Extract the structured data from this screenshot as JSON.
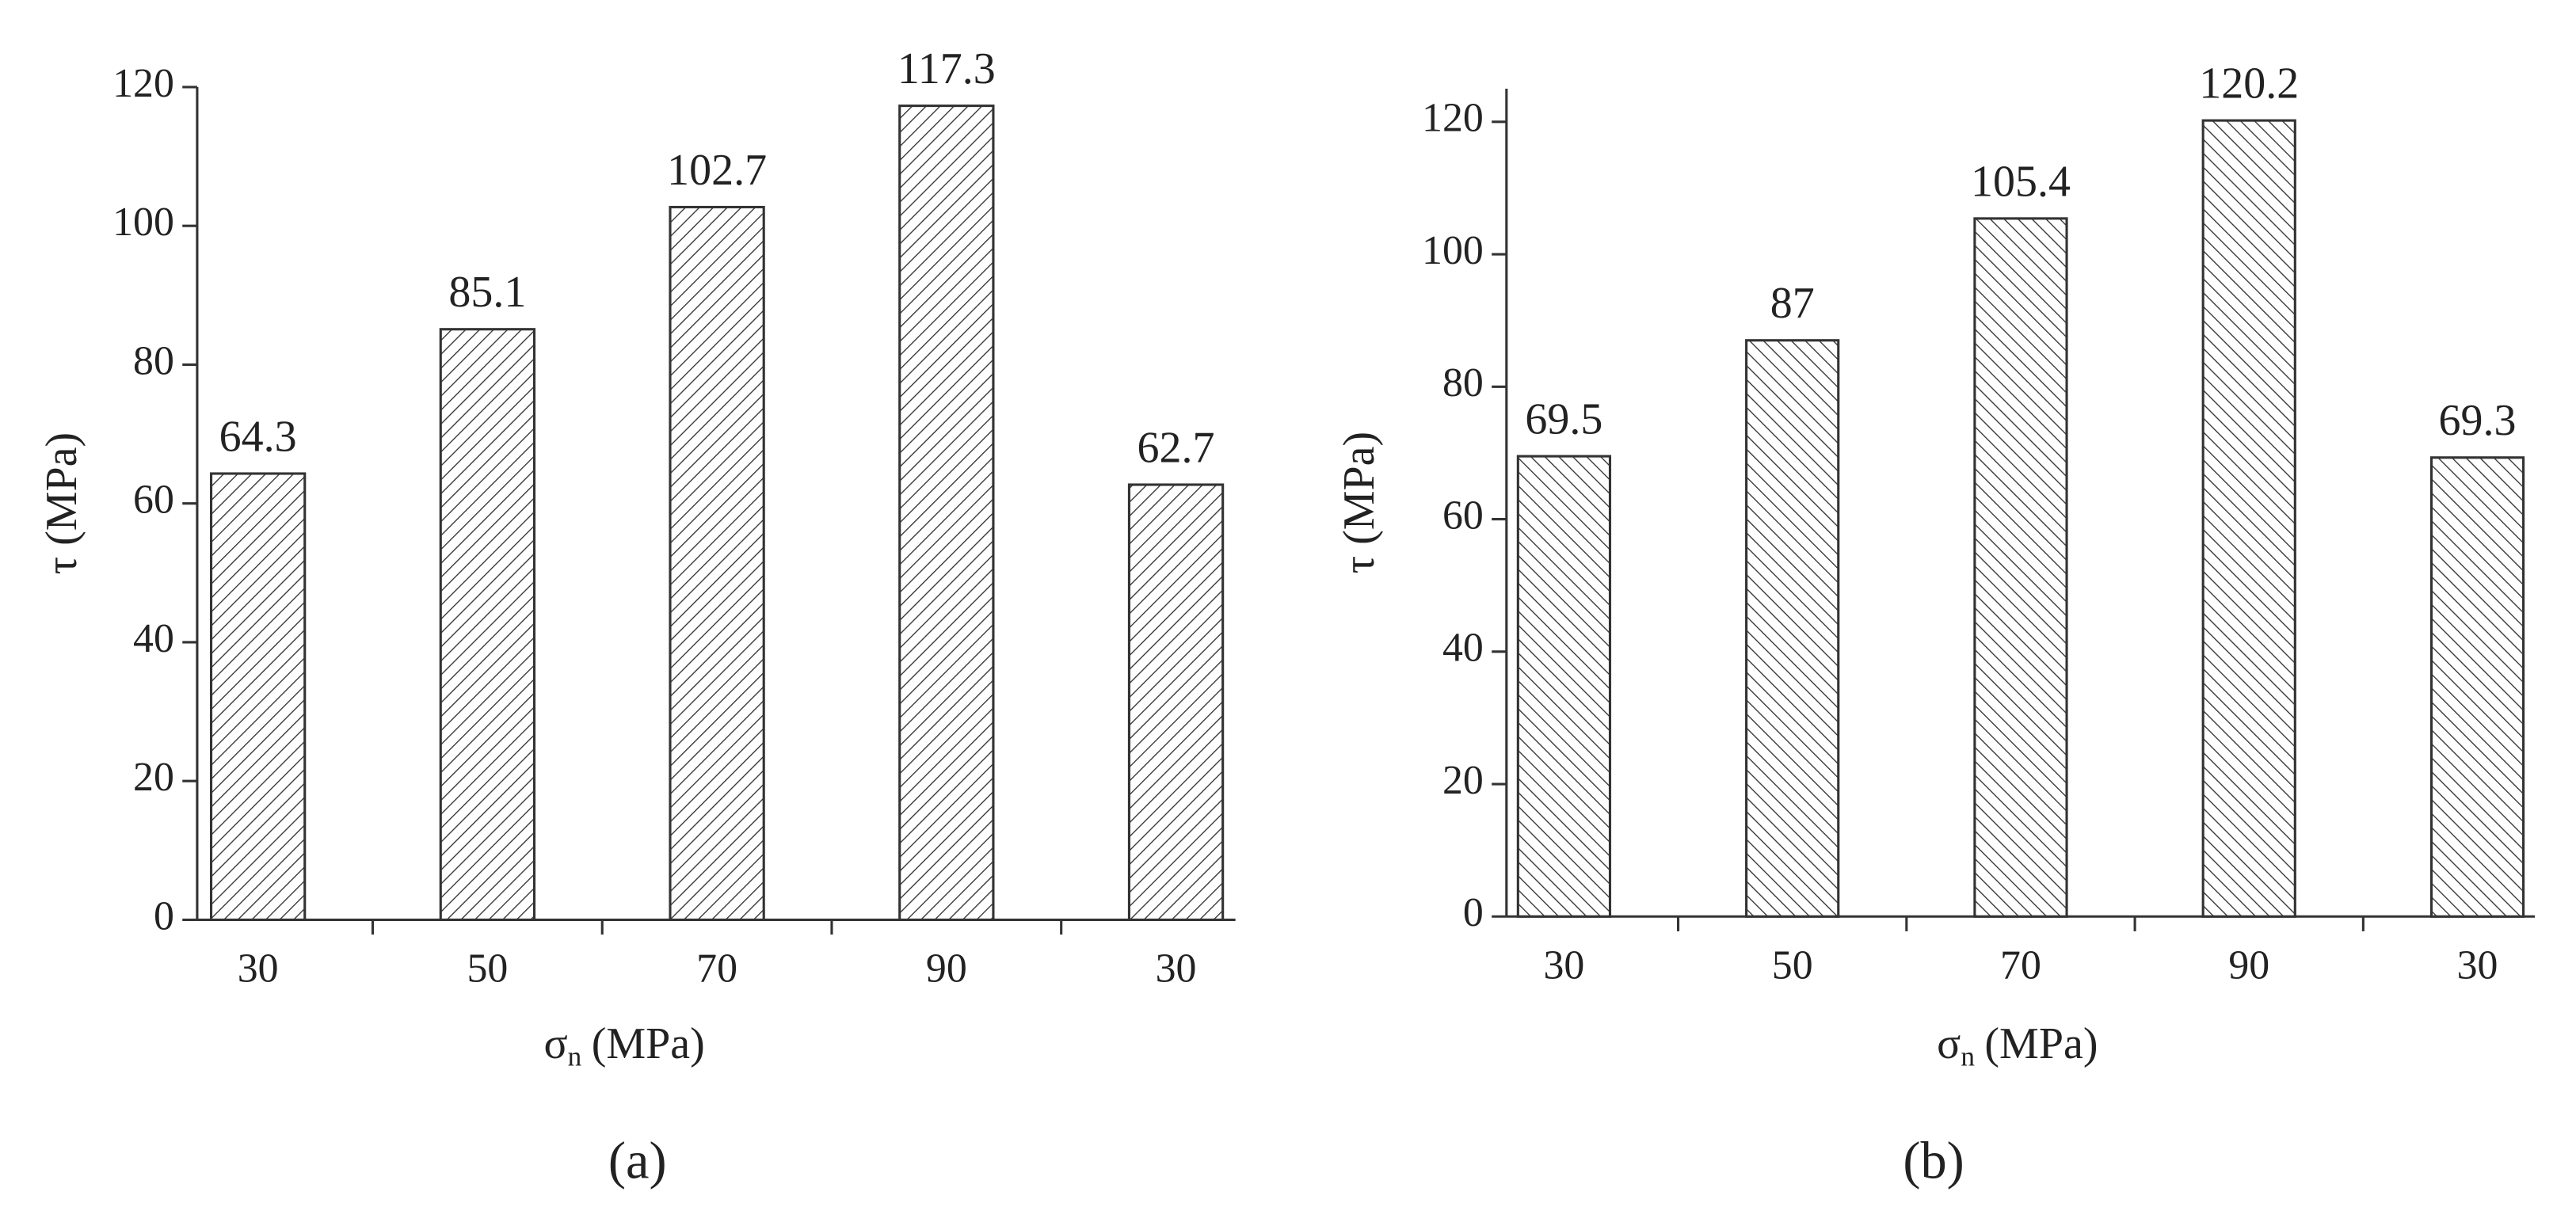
{
  "chart_data": [
    {
      "type": "bar",
      "panel_label": "(a)",
      "y_label": "τ (MPa)",
      "x_label": {
        "symbol": "σ",
        "subscript": "n",
        "unit": "(MPa)"
      },
      "categories": [
        "30",
        "50",
        "70",
        "90",
        "30"
      ],
      "values": [
        64.3,
        85.1,
        102.7,
        117.3,
        62.7
      ],
      "color": "#333333",
      "hatch": "forward",
      "ylim": [
        0,
        120
      ],
      "yticks": [
        0,
        20,
        40,
        60,
        80,
        100,
        120
      ],
      "grid": false
    },
    {
      "type": "bar",
      "panel_label": "(b)",
      "y_label": "τ (MPa)",
      "x_label": {
        "symbol": "σ",
        "subscript": "n",
        "unit": "(MPa)"
      },
      "categories": [
        "30",
        "50",
        "70",
        "90",
        "30"
      ],
      "values": [
        69.5,
        87,
        105.4,
        120.2,
        69.3
      ],
      "color": "#333333",
      "hatch": "backward",
      "ylim": [
        0,
        125
      ],
      "yticks": [
        0,
        20,
        40,
        60,
        80,
        100,
        120
      ],
      "grid": false
    }
  ]
}
